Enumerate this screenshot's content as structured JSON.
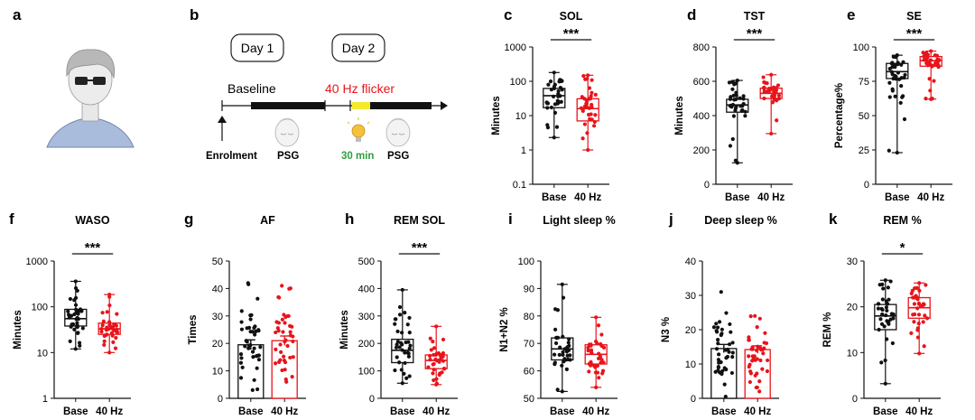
{
  "panel_a": {
    "label": "a"
  },
  "panel_b": {
    "label": "b",
    "day1": "Day 1",
    "day2": "Day 2",
    "baseline": "Baseline",
    "flicker": "40 Hz flicker",
    "enrolment": "Enrolment",
    "psg1": "PSG",
    "psg2": "PSG",
    "duration": "30 min",
    "colors": {
      "flicker_text": "#e8141b",
      "duration_text": "#2e9e3e",
      "flicker_bar": "#f2ea2a"
    }
  },
  "colors": {
    "base": "#111111",
    "hz": "#e8141b"
  },
  "chart_data": [
    {
      "id": "c",
      "label": "c",
      "title": "SOL",
      "type": "box",
      "ylabel": "Minutes",
      "scale": "log",
      "ylim": [
        0.1,
        1000
      ],
      "yticks": [
        "0.1",
        "1",
        "10",
        "100",
        "1000"
      ],
      "tick_values": [
        0.1,
        1,
        10,
        100,
        1000
      ],
      "categories": [
        "Base",
        "40 Hz"
      ],
      "sig": "***",
      "series": [
        {
          "name": "Base",
          "min": 2.3,
          "q1": 17,
          "median": 38,
          "q3": 62,
          "max": 180,
          "style": "box"
        },
        {
          "name": "40 Hz",
          "min": 1,
          "q1": 7,
          "median": 16,
          "q3": 31,
          "max": 150,
          "style": "box"
        }
      ]
    },
    {
      "id": "d",
      "label": "d",
      "title": "TST",
      "type": "box",
      "ylabel": "Minutes",
      "scale": "linear",
      "ylim": [
        0,
        800
      ],
      "yticks": [
        "0",
        "200",
        "400",
        "600",
        "800"
      ],
      "tick_values": [
        0,
        200,
        400,
        600,
        800
      ],
      "categories": [
        "Base",
        "40 Hz"
      ],
      "sig": "***",
      "series": [
        {
          "name": "Base",
          "min": 125,
          "q1": 420,
          "median": 462,
          "q3": 495,
          "max": 605,
          "style": "box"
        },
        {
          "name": "40 Hz",
          "min": 295,
          "q1": 500,
          "median": 530,
          "q3": 560,
          "max": 638,
          "style": "box"
        }
      ]
    },
    {
      "id": "e",
      "label": "e",
      "title": "SE",
      "type": "box",
      "ylabel": "Percentage%",
      "scale": "linear",
      "ylim": [
        0,
        100
      ],
      "yticks": [
        "0",
        "25",
        "50",
        "75",
        "100"
      ],
      "tick_values": [
        0,
        25,
        50,
        75,
        100
      ],
      "categories": [
        "Base",
        "40 Hz"
      ],
      "sig": "***",
      "series": [
        {
          "name": "Base",
          "min": 23,
          "q1": 77,
          "median": 82,
          "q3": 88,
          "max": 94,
          "style": "box"
        },
        {
          "name": "40 Hz",
          "min": 62,
          "q1": 86,
          "median": 90,
          "q3": 93,
          "max": 97,
          "style": "box"
        }
      ]
    },
    {
      "id": "f",
      "label": "f",
      "title": "WASO",
      "type": "box",
      "ylabel": "Minutes",
      "scale": "log",
      "ylim": [
        1,
        1000
      ],
      "yticks": [
        "1",
        "10",
        "100",
        "1000"
      ],
      "tick_values": [
        1,
        10,
        100,
        1000
      ],
      "categories": [
        "Base",
        "40 Hz"
      ],
      "sig": "***",
      "series": [
        {
          "name": "Base",
          "min": 12,
          "q1": 38,
          "median": 55,
          "q3": 88,
          "max": 360,
          "style": "box"
        },
        {
          "name": "40 Hz",
          "min": 10,
          "q1": 25,
          "median": 33,
          "q3": 44,
          "max": 185,
          "style": "box"
        }
      ]
    },
    {
      "id": "g",
      "label": "g",
      "title": "AF",
      "type": "bar",
      "ylabel": "Times",
      "scale": "linear",
      "ylim": [
        0,
        50
      ],
      "yticks": [
        "0",
        "10",
        "20",
        "30",
        "40",
        "50"
      ],
      "tick_values": [
        0,
        10,
        20,
        30,
        40,
        50
      ],
      "categories": [
        "Base",
        "40 Hz"
      ],
      "sig": "",
      "series": [
        {
          "name": "Base",
          "mean": 19.5,
          "err": 1.8,
          "min": 3,
          "max": 42,
          "style": "bar"
        },
        {
          "name": "40 Hz",
          "mean": 21,
          "err": 1.7,
          "min": 6,
          "max": 41,
          "style": "bar"
        }
      ]
    },
    {
      "id": "h",
      "label": "h",
      "title": "REM SOL",
      "type": "box",
      "ylabel": "Minutes",
      "scale": "linear",
      "ylim": [
        0,
        500
      ],
      "yticks": [
        "0",
        "100",
        "200",
        "300",
        "400",
        "500"
      ],
      "tick_values": [
        0,
        100,
        200,
        300,
        400,
        500
      ],
      "categories": [
        "Base",
        "40 Hz"
      ],
      "sig": "***",
      "series": [
        {
          "name": "Base",
          "min": 55,
          "q1": 130,
          "median": 175,
          "q3": 215,
          "max": 395,
          "style": "box"
        },
        {
          "name": "40 Hz",
          "min": 50,
          "q1": 108,
          "median": 138,
          "q3": 158,
          "max": 262,
          "style": "box"
        }
      ]
    },
    {
      "id": "i",
      "label": "i",
      "title": "Light sleep %",
      "type": "box",
      "ylabel": "N1+N2 %",
      "scale": "linear",
      "ylim": [
        50,
        100
      ],
      "yticks": [
        "50",
        "60",
        "70",
        "80",
        "90",
        "100"
      ],
      "tick_values": [
        50,
        60,
        70,
        80,
        90,
        100
      ],
      "categories": [
        "Base",
        "40 Hz"
      ],
      "sig": "",
      "series": [
        {
          "name": "Base",
          "min": 52.5,
          "q1": 64,
          "median": 68,
          "q3": 72,
          "max": 91.5,
          "style": "box"
        },
        {
          "name": "40 Hz",
          "min": 54,
          "q1": 62.5,
          "median": 66,
          "q3": 69.5,
          "max": 79.5,
          "style": "box"
        }
      ]
    },
    {
      "id": "j",
      "label": "j",
      "title": "Deep sleep %",
      "type": "bar",
      "ylabel": "N3 %",
      "scale": "linear",
      "ylim": [
        0,
        40
      ],
      "yticks": [
        "0",
        "10",
        "20",
        "30",
        "40"
      ],
      "tick_values": [
        0,
        10,
        20,
        30,
        40
      ],
      "categories": [
        "Base",
        "40 Hz"
      ],
      "sig": "",
      "series": [
        {
          "name": "Base",
          "mean": 14.5,
          "err": 1.2,
          "min": 0.5,
          "max": 31,
          "style": "bar"
        },
        {
          "name": "40 Hz",
          "mean": 14.2,
          "err": 1.1,
          "min": 2,
          "max": 24,
          "style": "bar"
        }
      ]
    },
    {
      "id": "k",
      "label": "k",
      "title": "REM %",
      "type": "box",
      "ylabel": "REM %",
      "scale": "linear",
      "ylim": [
        0,
        30
      ],
      "yticks": [
        "0",
        "10",
        "20",
        "30"
      ],
      "tick_values": [
        0,
        10,
        20,
        30
      ],
      "categories": [
        "Base",
        "40 Hz"
      ],
      "sig": "*",
      "series": [
        {
          "name": "Base",
          "min": 3.2,
          "q1": 15,
          "median": 18,
          "q3": 20.5,
          "max": 25.8,
          "style": "box"
        },
        {
          "name": "40 Hz",
          "min": 9.8,
          "q1": 17.5,
          "median": 19.8,
          "q3": 22,
          "max": 25.2,
          "style": "box"
        }
      ]
    }
  ]
}
